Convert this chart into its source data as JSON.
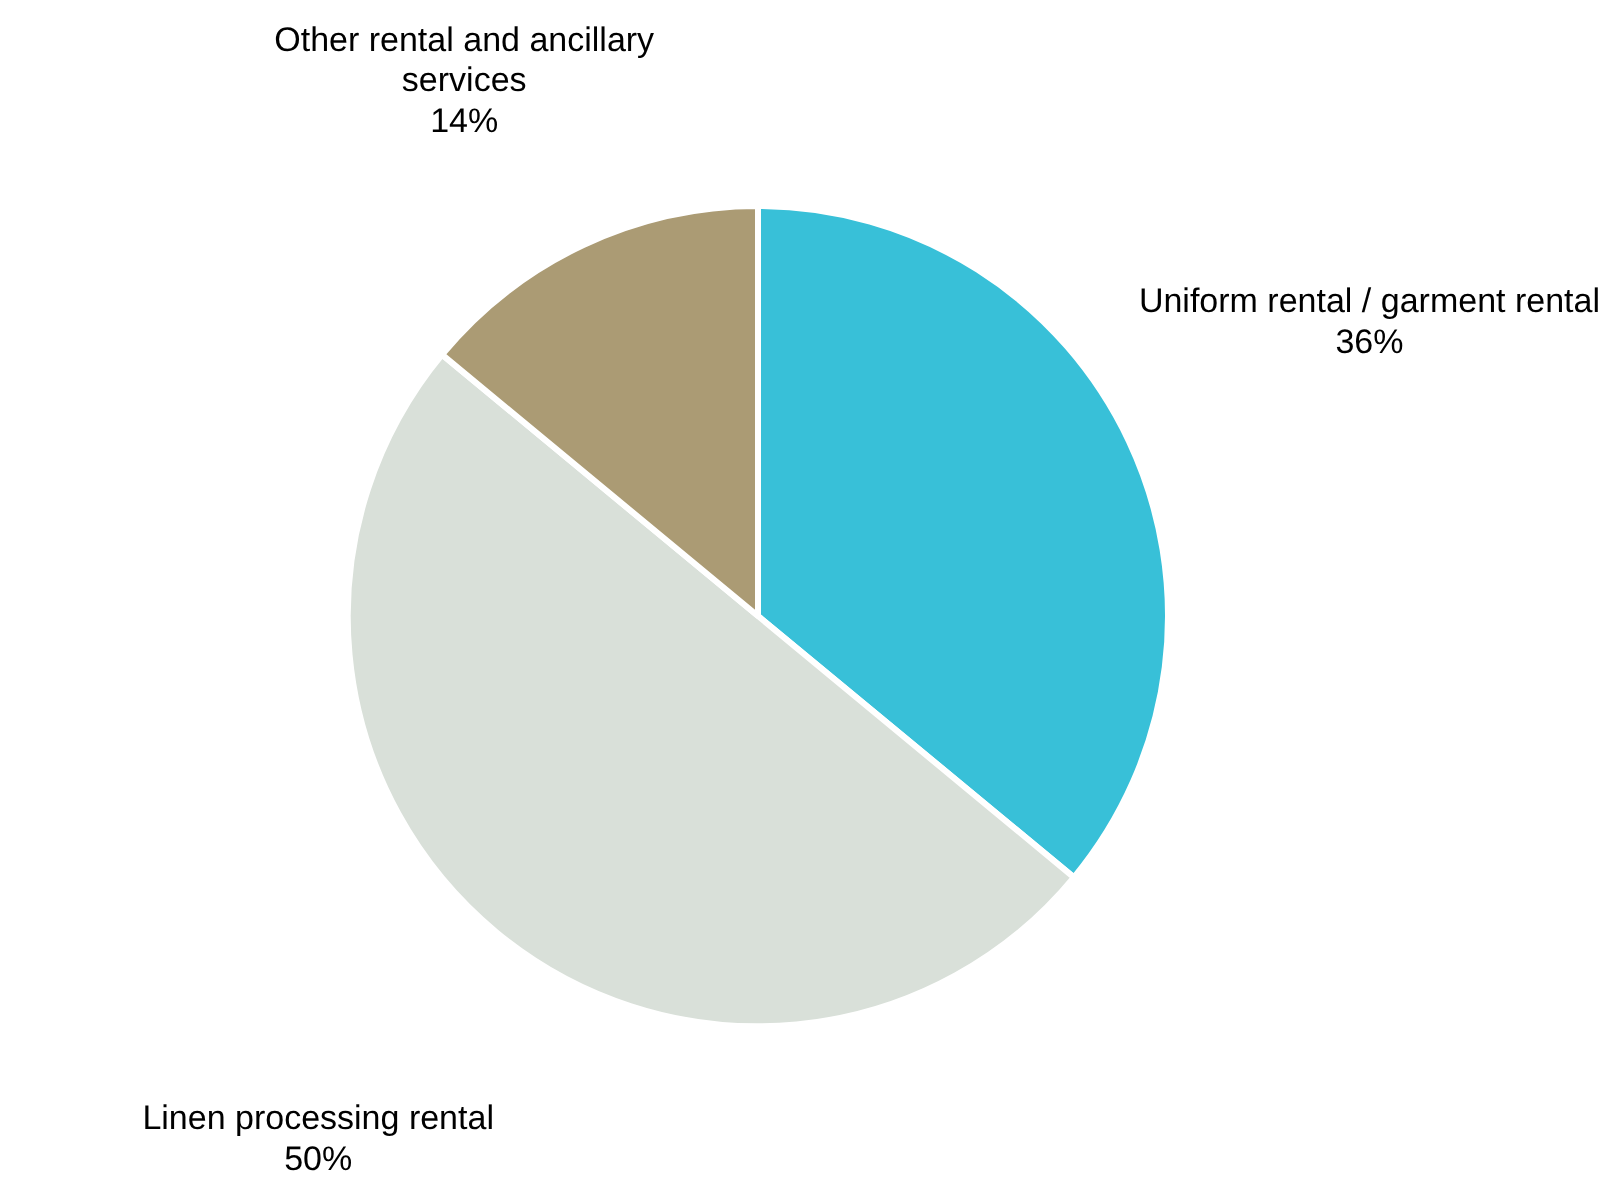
{
  "chart_data": {
    "type": "pie",
    "categories": [
      "Uniform rental / garment rental",
      "Linen processing rental",
      "Other rental and ancillary services"
    ],
    "values": [
      36,
      50,
      14
    ],
    "colors": [
      "#38c0d8",
      "#d9e0d9",
      "#ab9b74"
    ],
    "value_labels": [
      "36%",
      "50%",
      "14%"
    ]
  }
}
